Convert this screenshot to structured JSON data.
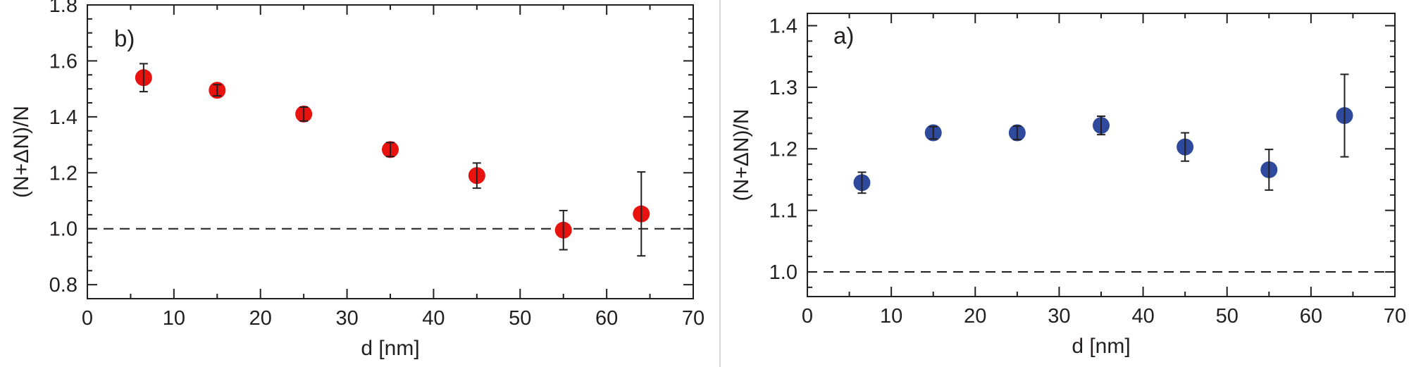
{
  "chart_data": [
    {
      "type": "scatter",
      "panel_label": "b)",
      "xlabel": "d [nm]",
      "ylabel": "(N+ΔN)/N",
      "xlim": [
        0,
        70
      ],
      "ylim": [
        0.75,
        1.8
      ],
      "xticks": [
        0,
        10,
        20,
        30,
        40,
        50,
        60,
        70
      ],
      "xtick_labels": [
        "0",
        "10",
        "20",
        "30",
        "40",
        "50",
        "60",
        "70"
      ],
      "yticks": [
        0.8,
        1.0,
        1.2,
        1.4,
        1.6,
        1.8
      ],
      "ytick_labels": [
        "0.8",
        "1.0",
        "1.2",
        "1.4",
        "1.6",
        "1.8"
      ],
      "reference_line": 1.0,
      "marker_color": "#e8120f",
      "points": [
        {
          "x": 6.5,
          "y": 1.54,
          "err": 0.05
        },
        {
          "x": 15,
          "y": 1.495,
          "err": 0.02
        },
        {
          "x": 25,
          "y": 1.41,
          "err": 0.025
        },
        {
          "x": 35,
          "y": 1.283,
          "err": 0.025
        },
        {
          "x": 45,
          "y": 1.19,
          "err": 0.045
        },
        {
          "x": 55,
          "y": 0.995,
          "err": 0.07
        },
        {
          "x": 64,
          "y": 1.053,
          "err": 0.15
        }
      ],
      "grid": false
    },
    {
      "type": "scatter",
      "panel_label": "a)",
      "xlabel": "d [nm]",
      "ylabel": "(N+ΔN)/N",
      "xlim": [
        0,
        70
      ],
      "ylim": [
        0.96,
        1.42
      ],
      "xticks": [
        0,
        10,
        20,
        30,
        40,
        50,
        60,
        70
      ],
      "xtick_labels": [
        "0",
        "10",
        "20",
        "30",
        "40",
        "50",
        "60",
        "70"
      ],
      "yticks": [
        1.0,
        1.1,
        1.2,
        1.3,
        1.4
      ],
      "ytick_labels": [
        "1.0",
        "1.1",
        "1.2",
        "1.3",
        "1.4"
      ],
      "reference_line": 1.0,
      "marker_color": "#2f4a9c",
      "points": [
        {
          "x": 6.5,
          "y": 1.145,
          "err": 0.017
        },
        {
          "x": 15,
          "y": 1.226,
          "err": 0.01
        },
        {
          "x": 25,
          "y": 1.226,
          "err": 0.011
        },
        {
          "x": 35,
          "y": 1.238,
          "err": 0.015
        },
        {
          "x": 45,
          "y": 1.203,
          "err": 0.023
        },
        {
          "x": 55,
          "y": 1.166,
          "err": 0.033
        },
        {
          "x": 64,
          "y": 1.254,
          "err": 0.067
        }
      ],
      "grid": false
    }
  ]
}
